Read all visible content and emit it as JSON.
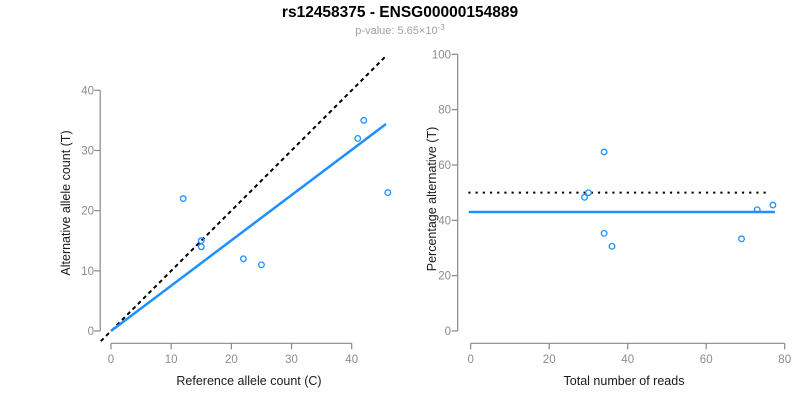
{
  "header": {
    "title": "rs12458375 - ENSG00000154889",
    "p_label": "p-value: 5.65×10",
    "p_exponent": "-3"
  },
  "colors": {
    "accent_blue": "#1E90FF",
    "axis_gray": "#888888",
    "tick_label_gray": "#8c8c8c",
    "subtitle_gray": "#a0a0a0",
    "line_black": "#000000"
  },
  "chart_data": [
    {
      "type": "scatter",
      "id": "allele-counts",
      "xlabel": "Reference allele count (C)",
      "ylabel": "Alternative allele count (T)",
      "x_ticks": [
        0,
        10,
        20,
        30,
        40
      ],
      "y_ticks": [
        0,
        10,
        20,
        30,
        40
      ],
      "xlim": [
        -1.8,
        47.8
      ],
      "ylim": [
        -2.1,
        45.9
      ],
      "grid": false,
      "legend": "none",
      "points": [
        [
          12,
          22
        ],
        [
          15,
          15
        ],
        [
          15,
          14
        ],
        [
          22,
          12
        ],
        [
          25,
          11
        ],
        [
          41,
          32
        ],
        [
          42,
          35
        ],
        [
          46,
          23
        ]
      ],
      "lines": [
        {
          "name": "identity-line",
          "x1": -1.7,
          "y1": -1.7,
          "x2": 45.8,
          "y2": 45.8,
          "style": "dashed",
          "color": "black",
          "width": 2
        },
        {
          "name": "regression-line",
          "x1": 0,
          "y1": 0,
          "x2": 45.7,
          "y2": 34.4,
          "style": "solid",
          "color": "blue",
          "width": 2.5
        }
      ]
    },
    {
      "type": "scatter",
      "id": "percentage-alternative",
      "xlabel": "Total number of reads",
      "ylabel": "Percentage alternative (T)",
      "x_ticks": [
        0,
        20,
        40,
        60,
        80
      ],
      "y_ticks": [
        0,
        20,
        40,
        60,
        80,
        100
      ],
      "xlim": [
        -3.3,
        83.2
      ],
      "ylim": [
        -4.5,
        104.5
      ],
      "grid": false,
      "legend": "none",
      "points": [
        [
          34,
          64.7
        ],
        [
          30,
          50
        ],
        [
          29,
          48.3
        ],
        [
          34,
          35.3
        ],
        [
          36,
          30.6
        ],
        [
          69,
          33.3
        ],
        [
          73,
          43.8
        ],
        [
          77,
          45.5
        ]
      ],
      "lines": [
        {
          "name": "expected-50pct-line",
          "x1": -0.6,
          "y1": 50,
          "x2": 75.7,
          "y2": 50,
          "style": "dotted",
          "color": "black",
          "width": 2
        },
        {
          "name": "observed-pct-line",
          "x1": -0.5,
          "y1": 43,
          "x2": 77.5,
          "y2": 43,
          "style": "solid",
          "color": "blue",
          "width": 2.5
        }
      ]
    }
  ]
}
